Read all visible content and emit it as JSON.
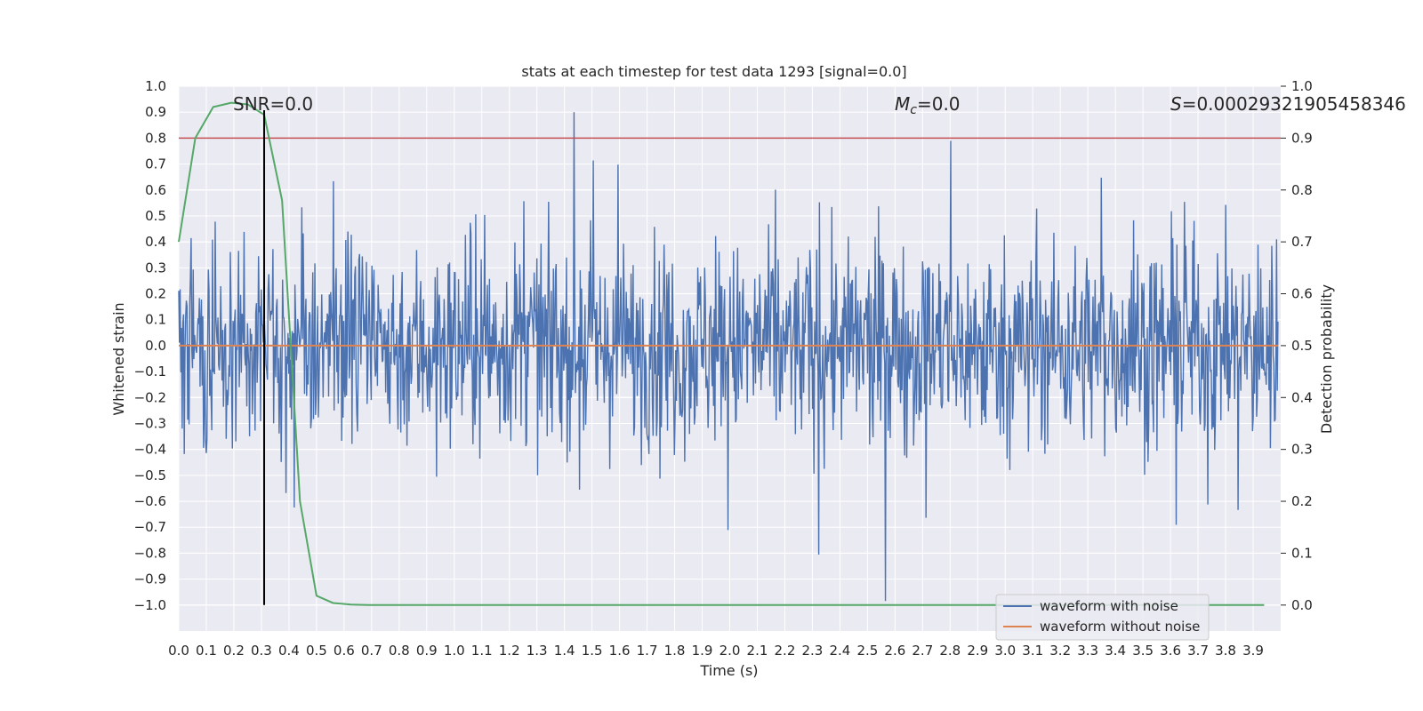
{
  "chart_data": {
    "type": "line",
    "title": "stats at each timestep for test data 1293 [signal=0.0]",
    "xlabel": "Time (s)",
    "ylabel": "Whitened strain",
    "ylabel_right": "Detection probability",
    "xlim": [
      0.0,
      4.0
    ],
    "ylim": [
      -1.1,
      1.0
    ],
    "ylim_right": [
      -0.05,
      1.0
    ],
    "xticks": [
      "0.0",
      "0.1",
      "0.2",
      "0.3",
      "0.4",
      "0.5",
      "0.6",
      "0.7",
      "0.8",
      "0.9",
      "1.0",
      "1.1",
      "1.2",
      "1.3",
      "1.4",
      "1.5",
      "1.6",
      "1.7",
      "1.8",
      "1.9",
      "2.0",
      "2.1",
      "2.2",
      "2.3",
      "2.4",
      "2.5",
      "2.6",
      "2.7",
      "2.8",
      "2.9",
      "3.0",
      "3.1",
      "3.2",
      "3.3",
      "3.4",
      "3.5",
      "3.6",
      "3.7",
      "3.8",
      "3.9"
    ],
    "yticks_left": [
      "1.0",
      "0.9",
      "0.8",
      "0.7",
      "0.6",
      "0.5",
      "0.4",
      "0.3",
      "0.2",
      "0.1",
      "0.0",
      "−0.1",
      "−0.2",
      "−0.3",
      "−0.4",
      "−0.5",
      "−0.6",
      "−0.7",
      "−0.8",
      "−0.9",
      "−1.0"
    ],
    "yticks_right": [
      "1.0",
      "0.9",
      "0.8",
      "0.7",
      "0.6",
      "0.5",
      "0.4",
      "0.3",
      "0.2",
      "0.1",
      "0.0"
    ],
    "annotations": {
      "snr": "SNR=0.0",
      "mc_symbol": "M",
      "mc_sub": "c",
      "mc_value": "=0.0",
      "s_symbol": "S",
      "s_value": "=0.00029321905458346"
    },
    "threshold": 0.9,
    "marker_time": 0.31,
    "series": [
      {
        "name": "waveform with noise",
        "color": "#4c72b0",
        "axis": "left",
        "style": "noise",
        "amplitude_typical": 0.35,
        "amplitude_max": 0.9
      },
      {
        "name": "waveform without noise",
        "color": "#dd8452",
        "axis": "left",
        "x": [
          0.0,
          3.99
        ],
        "values": [
          0.0,
          0.0
        ]
      },
      {
        "name": "detection probability",
        "color": "#55a868",
        "axis": "right",
        "x": [
          0.0,
          0.06,
          0.125,
          0.19,
          0.25,
          0.31,
          0.375,
          0.44,
          0.5,
          0.56,
          0.625,
          0.69,
          0.75,
          1.0,
          2.0,
          3.0,
          3.94
        ],
        "values": [
          0.7,
          0.9,
          0.96,
          0.968,
          0.965,
          0.945,
          0.78,
          0.2,
          0.018,
          0.004,
          0.001,
          0.0,
          0.0,
          0.0,
          0.0,
          0.0,
          0.0
        ]
      },
      {
        "name": "threshold",
        "color": "#c44e52",
        "axis": "right",
        "x": [
          0.0,
          4.0
        ],
        "values": [
          0.9,
          0.9
        ]
      }
    ],
    "legend": {
      "position": "lower-right",
      "entries": [
        "waveform with noise",
        "waveform without noise"
      ]
    },
    "grid": true
  },
  "colors": {
    "axes_bg": "#eaeaf2",
    "grid": "#ffffff",
    "noise": "#4c72b0",
    "clean": "#dd8452",
    "prob": "#55a868",
    "threshold": "#c44e52",
    "marker": "#000000"
  }
}
